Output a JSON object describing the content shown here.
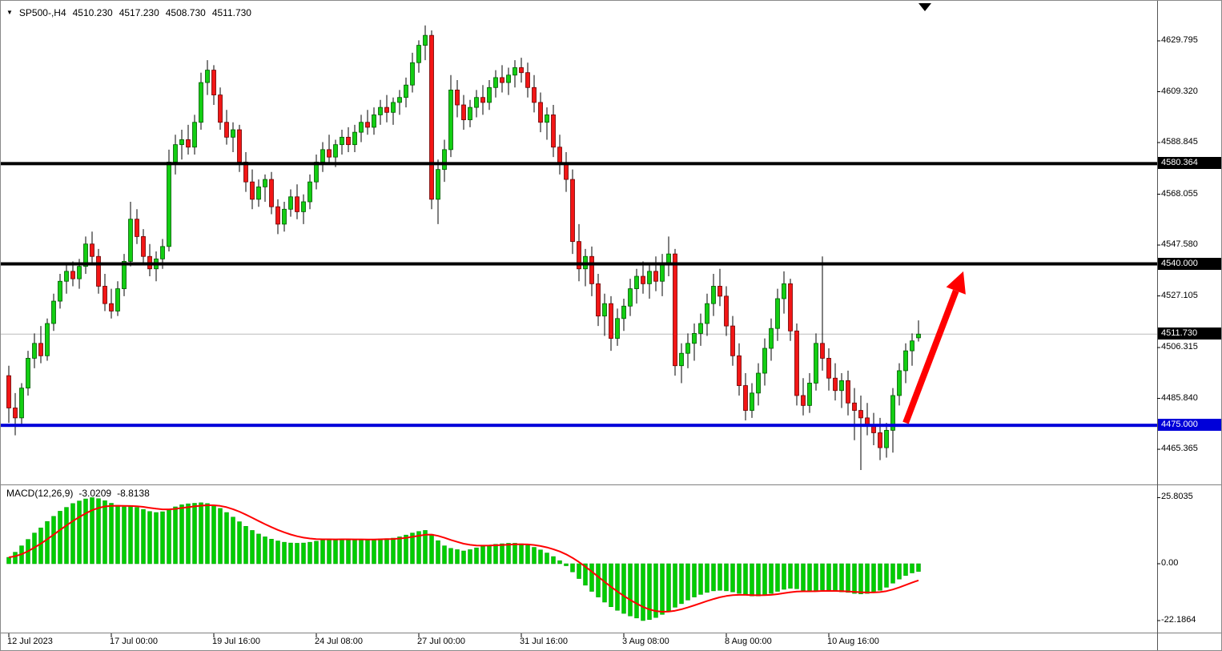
{
  "header": {
    "dropdown_icon": "▼",
    "symbol": "SP500-,H4",
    "open": "4510.230",
    "high": "4517.230",
    "low": "4508.730",
    "close": "4511.730"
  },
  "macd_panel": {
    "label": "MACD(12,26,9)",
    "value_main": "-3.0209",
    "value_signal": "-8.8138",
    "axis_labels": [
      {
        "text": "25.8035",
        "value": 25.8035
      },
      {
        "text": "0.00",
        "value": 0
      },
      {
        "text": "-22.1864",
        "value": -22.1864
      }
    ]
  },
  "price_axis": {
    "ticks": [
      {
        "text": "4629.795",
        "value": 4629.795
      },
      {
        "text": "4609.320",
        "value": 4609.32
      },
      {
        "text": "4588.845",
        "value": 4588.845
      },
      {
        "text": "4568.055",
        "value": 4568.055
      },
      {
        "text": "4547.580",
        "value": 4547.58
      },
      {
        "text": "4527.105",
        "value": 4527.105
      },
      {
        "text": "4506.315",
        "value": 4506.315
      },
      {
        "text": "4485.840",
        "value": 4485.84
      },
      {
        "text": "4465.365",
        "value": 4465.365
      }
    ],
    "badges": [
      {
        "text": "4580.364",
        "value": 4580.364,
        "bg": "#000000"
      },
      {
        "text": "4540.000",
        "value": 4540.0,
        "bg": "#000000"
      },
      {
        "text": "4511.730",
        "value": 4511.73,
        "bg": "#000000"
      },
      {
        "text": "4475.000",
        "value": 4475.0,
        "bg": "#0000D9"
      }
    ]
  },
  "time_axis": {
    "labels": [
      {
        "text": "12 Jul 2023",
        "bar": 0
      },
      {
        "text": "17 Jul 00:00",
        "bar": 16
      },
      {
        "text": "19 Jul 16:00",
        "bar": 32
      },
      {
        "text": "24 Jul 08:00",
        "bar": 48
      },
      {
        "text": "27 Jul 00:00",
        "bar": 64
      },
      {
        "text": "31 Jul 16:00",
        "bar": 80
      },
      {
        "text": "3 Aug 08:00",
        "bar": 96
      },
      {
        "text": "8 Aug 00:00",
        "bar": 112
      },
      {
        "text": "10 Aug 16:00",
        "bar": 128
      }
    ]
  },
  "colors": {
    "background": "#FFFFFF",
    "bull": "#13CE13",
    "bull_border": "#005800",
    "bear": "#F21616",
    "bear_border": "#6B0000",
    "wick": "#000000",
    "macd_hist": "#00CD00",
    "macd_hist_border": "#009900",
    "macd_signal": "#FF0000",
    "current_price_line": "#BBBBBB",
    "separator": "#808080",
    "axis_text": "#000000",
    "badge_text": "#FFFFFF"
  },
  "chart_data": {
    "type": "candlestick",
    "symbol": "SP500",
    "timeframe": "H4",
    "title": "SP500-,H4 4510.230 4517.230 4508.730 4511.730",
    "current_price": 4511.73,
    "price_axis_range": [
      4455,
      4645
    ],
    "hlines": [
      {
        "price": 4580.364,
        "color": "#000000",
        "width": 4,
        "label": "4580.364"
      },
      {
        "price": 4540.0,
        "color": "#000000",
        "width": 4,
        "label": "4540.000"
      },
      {
        "price": 4475.0,
        "color": "#0000D9",
        "width": 4,
        "label": "4475.000"
      }
    ],
    "annotations": {
      "trend_arrow": {
        "from": {
          "bar": 140,
          "price": 4476
        },
        "to": {
          "bar": 149,
          "price": 4537
        },
        "color": "#FF0000"
      }
    },
    "candles": [
      [
        4495,
        4499,
        4476,
        4482
      ],
      [
        4482,
        4488,
        4471,
        4478
      ],
      [
        4478,
        4492,
        4475,
        4490
      ],
      [
        4490,
        4505,
        4487,
        4502
      ],
      [
        4502,
        4512,
        4498,
        4508
      ],
      [
        4508,
        4515,
        4500,
        4503
      ],
      [
        4503,
        4518,
        4501,
        4516
      ],
      [
        4516,
        4528,
        4513,
        4525
      ],
      [
        4525,
        4536,
        4522,
        4533
      ],
      [
        4533,
        4540,
        4528,
        4537
      ],
      [
        4537,
        4541,
        4531,
        4534
      ],
      [
        4534,
        4542,
        4530,
        4539
      ],
      [
        4539,
        4551,
        4536,
        4548
      ],
      [
        4548,
        4553,
        4540,
        4543
      ],
      [
        4543,
        4546,
        4528,
        4531
      ],
      [
        4531,
        4536,
        4521,
        4524
      ],
      [
        4524,
        4530,
        4518,
        4521
      ],
      [
        4521,
        4533,
        4519,
        4530
      ],
      [
        4530,
        4544,
        4527,
        4541
      ],
      [
        4541,
        4565,
        4539,
        4558
      ],
      [
        4558,
        4562,
        4548,
        4551
      ],
      [
        4551,
        4554,
        4540,
        4543
      ],
      [
        4543,
        4548,
        4535,
        4538
      ],
      [
        4538,
        4545,
        4533,
        4542
      ],
      [
        4542,
        4550,
        4538,
        4547
      ],
      [
        4547,
        4586,
        4545,
        4581
      ],
      [
        4581,
        4592,
        4576,
        4588
      ],
      [
        4588,
        4594,
        4582,
        4590
      ],
      [
        4590,
        4596,
        4584,
        4587
      ],
      [
        4587,
        4600,
        4584,
        4597
      ],
      [
        4597,
        4617,
        4594,
        4613
      ],
      [
        4613,
        4622,
        4608,
        4618
      ],
      [
        4618,
        4620,
        4604,
        4608
      ],
      [
        4608,
        4611,
        4594,
        4597
      ],
      [
        4597,
        4602,
        4588,
        4591
      ],
      [
        4591,
        4597,
        4585,
        4594
      ],
      [
        4594,
        4596,
        4577,
        4581
      ],
      [
        4581,
        4585,
        4569,
        4573
      ],
      [
        4573,
        4578,
        4562,
        4566
      ],
      [
        4566,
        4574,
        4563,
        4571
      ],
      [
        4571,
        4576,
        4565,
        4574
      ],
      [
        4574,
        4577,
        4560,
        4563
      ],
      [
        4563,
        4566,
        4552,
        4556
      ],
      [
        4556,
        4565,
        4553,
        4562
      ],
      [
        4562,
        4570,
        4559,
        4567
      ],
      [
        4567,
        4572,
        4558,
        4561
      ],
      [
        4561,
        4568,
        4556,
        4565
      ],
      [
        4565,
        4576,
        4562,
        4573
      ],
      [
        4573,
        4584,
        4570,
        4581
      ],
      [
        4581,
        4589,
        4577,
        4586
      ],
      [
        4586,
        4592,
        4580,
        4583
      ],
      [
        4583,
        4590,
        4579,
        4588
      ],
      [
        4588,
        4594,
        4584,
        4591
      ],
      [
        4591,
        4595,
        4585,
        4588
      ],
      [
        4588,
        4596,
        4585,
        4593
      ],
      [
        4593,
        4600,
        4589,
        4597
      ],
      [
        4597,
        4602,
        4592,
        4595
      ],
      [
        4595,
        4603,
        4592,
        4600
      ],
      [
        4600,
        4606,
        4596,
        4603
      ],
      [
        4603,
        4608,
        4597,
        4601
      ],
      [
        4601,
        4607,
        4596,
        4605
      ],
      [
        4605,
        4610,
        4600,
        4607
      ],
      [
        4607,
        4615,
        4603,
        4612
      ],
      [
        4612,
        4625,
        4609,
        4621
      ],
      [
        4621,
        4630,
        4617,
        4628
      ],
      [
        4628,
        4636,
        4622,
        4632
      ],
      [
        4632,
        4634,
        4562,
        4566
      ],
      [
        4566,
        4582,
        4556,
        4578
      ],
      [
        4578,
        4590,
        4573,
        4586
      ],
      [
        4586,
        4616,
        4583,
        4610
      ],
      [
        4610,
        4614,
        4599,
        4604
      ],
      [
        4604,
        4608,
        4594,
        4598
      ],
      [
        4598,
        4606,
        4595,
        4603
      ],
      [
        4603,
        4610,
        4599,
        4607
      ],
      [
        4607,
        4612,
        4600,
        4605
      ],
      [
        4605,
        4614,
        4602,
        4611
      ],
      [
        4611,
        4618,
        4607,
        4615
      ],
      [
        4615,
        4620,
        4609,
        4613
      ],
      [
        4613,
        4619,
        4608,
        4616
      ],
      [
        4616,
        4622,
        4611,
        4619
      ],
      [
        4619,
        4623,
        4613,
        4617
      ],
      [
        4617,
        4621,
        4607,
        4611
      ],
      [
        4611,
        4616,
        4601,
        4605
      ],
      [
        4605,
        4609,
        4593,
        4597
      ],
      [
        4597,
        4603,
        4590,
        4600
      ],
      [
        4600,
        4604,
        4583,
        4587
      ],
      [
        4587,
        4592,
        4576,
        4580
      ],
      [
        4580,
        4585,
        4569,
        4574
      ],
      [
        4574,
        4578,
        4544,
        4549
      ],
      [
        4549,
        4556,
        4533,
        4538
      ],
      [
        4538,
        4546,
        4531,
        4543
      ],
      [
        4543,
        4547,
        4527,
        4532
      ],
      [
        4532,
        4536,
        4515,
        4519
      ],
      [
        4519,
        4528,
        4511,
        4524
      ],
      [
        4524,
        4527,
        4505,
        4510
      ],
      [
        4510,
        4522,
        4507,
        4518
      ],
      [
        4518,
        4526,
        4513,
        4523
      ],
      [
        4523,
        4534,
        4519,
        4530
      ],
      [
        4530,
        4538,
        4524,
        4535
      ],
      [
        4535,
        4541,
        4528,
        4532
      ],
      [
        4532,
        4540,
        4526,
        4537
      ],
      [
        4537,
        4543,
        4529,
        4533
      ],
      [
        4533,
        4544,
        4527,
        4540
      ],
      [
        4540,
        4551,
        4535,
        4544
      ],
      [
        4544,
        4546,
        4495,
        4499
      ],
      [
        4499,
        4508,
        4492,
        4504
      ],
      [
        4504,
        4512,
        4498,
        4508
      ],
      [
        4508,
        4516,
        4501,
        4512
      ],
      [
        4512,
        4520,
        4507,
        4516
      ],
      [
        4516,
        4528,
        4511,
        4524
      ],
      [
        4524,
        4536,
        4519,
        4531
      ],
      [
        4531,
        4538,
        4523,
        4527
      ],
      [
        4527,
        4531,
        4511,
        4515
      ],
      [
        4515,
        4519,
        4499,
        4503
      ],
      [
        4503,
        4508,
        4487,
        4491
      ],
      [
        4491,
        4496,
        4477,
        4481
      ],
      [
        4481,
        4492,
        4478,
        4488
      ],
      [
        4488,
        4500,
        4483,
        4496
      ],
      [
        4496,
        4510,
        4491,
        4506
      ],
      [
        4506,
        4518,
        4501,
        4514
      ],
      [
        4514,
        4530,
        4509,
        4526
      ],
      [
        4526,
        4537,
        4520,
        4532
      ],
      [
        4532,
        4534,
        4509,
        4513
      ],
      [
        4513,
        4516,
        4483,
        4487
      ],
      [
        4487,
        4494,
        4479,
        4483
      ],
      [
        4483,
        4496,
        4480,
        4492
      ],
      [
        4492,
        4512,
        4489,
        4508
      ],
      [
        4508,
        4543,
        4497,
        4502
      ],
      [
        4502,
        4506,
        4489,
        4494
      ],
      [
        4494,
        4500,
        4485,
        4489
      ],
      [
        4489,
        4496,
        4482,
        4493
      ],
      [
        4493,
        4497,
        4479,
        4484
      ],
      [
        4484,
        4490,
        4469,
        4481
      ],
      [
        4481,
        4487,
        4457,
        4478
      ],
      [
        4478,
        4484,
        4471,
        4475
      ],
      [
        4475,
        4480,
        4467,
        4472
      ],
      [
        4472,
        4478,
        4461,
        4466
      ],
      [
        4466,
        4476,
        4462,
        4473
      ],
      [
        4473,
        4490,
        4464,
        4487
      ],
      [
        4487,
        4500,
        4483,
        4497
      ],
      [
        4497,
        4508,
        4492,
        4505
      ],
      [
        4505,
        4512,
        4499,
        4509
      ],
      [
        4510.23,
        4517.23,
        4508.73,
        4511.73
      ]
    ],
    "macd": {
      "fast": 12,
      "slow": 26,
      "signal": 9,
      "axis_range": [
        -22.1864,
        25.8035
      ],
      "histogram": [
        2.5,
        4.5,
        7,
        9.5,
        12,
        14,
        16.5,
        18.5,
        20.5,
        22,
        23.5,
        24.5,
        25.3,
        25.8,
        25.4,
        24.6,
        23.6,
        22.8,
        22.2,
        22.5,
        22.0,
        21.2,
        20.4,
        20.0,
        20.3,
        21.2,
        22.2,
        23.0,
        23.4,
        23.6,
        23.8,
        23.5,
        22.8,
        21.6,
        20.0,
        18.2,
        16.4,
        14.6,
        13.0,
        11.6,
        10.5,
        9.6,
        8.9,
        8.4,
        8.1,
        8.0,
        8.1,
        8.4,
        8.8,
        9.2,
        9.4,
        9.5,
        9.6,
        9.5,
        9.4,
        9.5,
        9.4,
        9.5,
        9.7,
        9.8,
        10.0,
        10.5,
        11.2,
        12.0,
        12.6,
        13.0,
        11.5,
        9.0,
        7.0,
        6.0,
        5.5,
        5.0,
        5.5,
        6.2,
        6.8,
        7.2,
        7.6,
        7.8,
        8.0,
        8.0,
        7.8,
        7.2,
        6.4,
        5.4,
        4.2,
        2.8,
        1.2,
        -0.8,
        -3.2,
        -5.8,
        -8.4,
        -10.8,
        -13.0,
        -15.0,
        -16.8,
        -18.2,
        -19.4,
        -20.4,
        -21.2,
        -22.19,
        -21.8,
        -21.0,
        -19.8,
        -18.4,
        -17.0,
        -15.6,
        -14.2,
        -13.0,
        -12.0,
        -11.2,
        -10.6,
        -10.4,
        -10.6,
        -11.0,
        -11.6,
        -12.2,
        -12.6,
        -12.6,
        -12.2,
        -11.6,
        -10.8,
        -10.0,
        -9.6,
        -9.8,
        -10.4,
        -10.8,
        -10.6,
        -10.2,
        -10.4,
        -10.8,
        -11.0,
        -11.2,
        -11.6,
        -11.8,
        -11.6,
        -11.2,
        -10.4,
        -9.2,
        -7.6,
        -6.0,
        -4.6,
        -3.6,
        -3.02
      ]
    }
  }
}
